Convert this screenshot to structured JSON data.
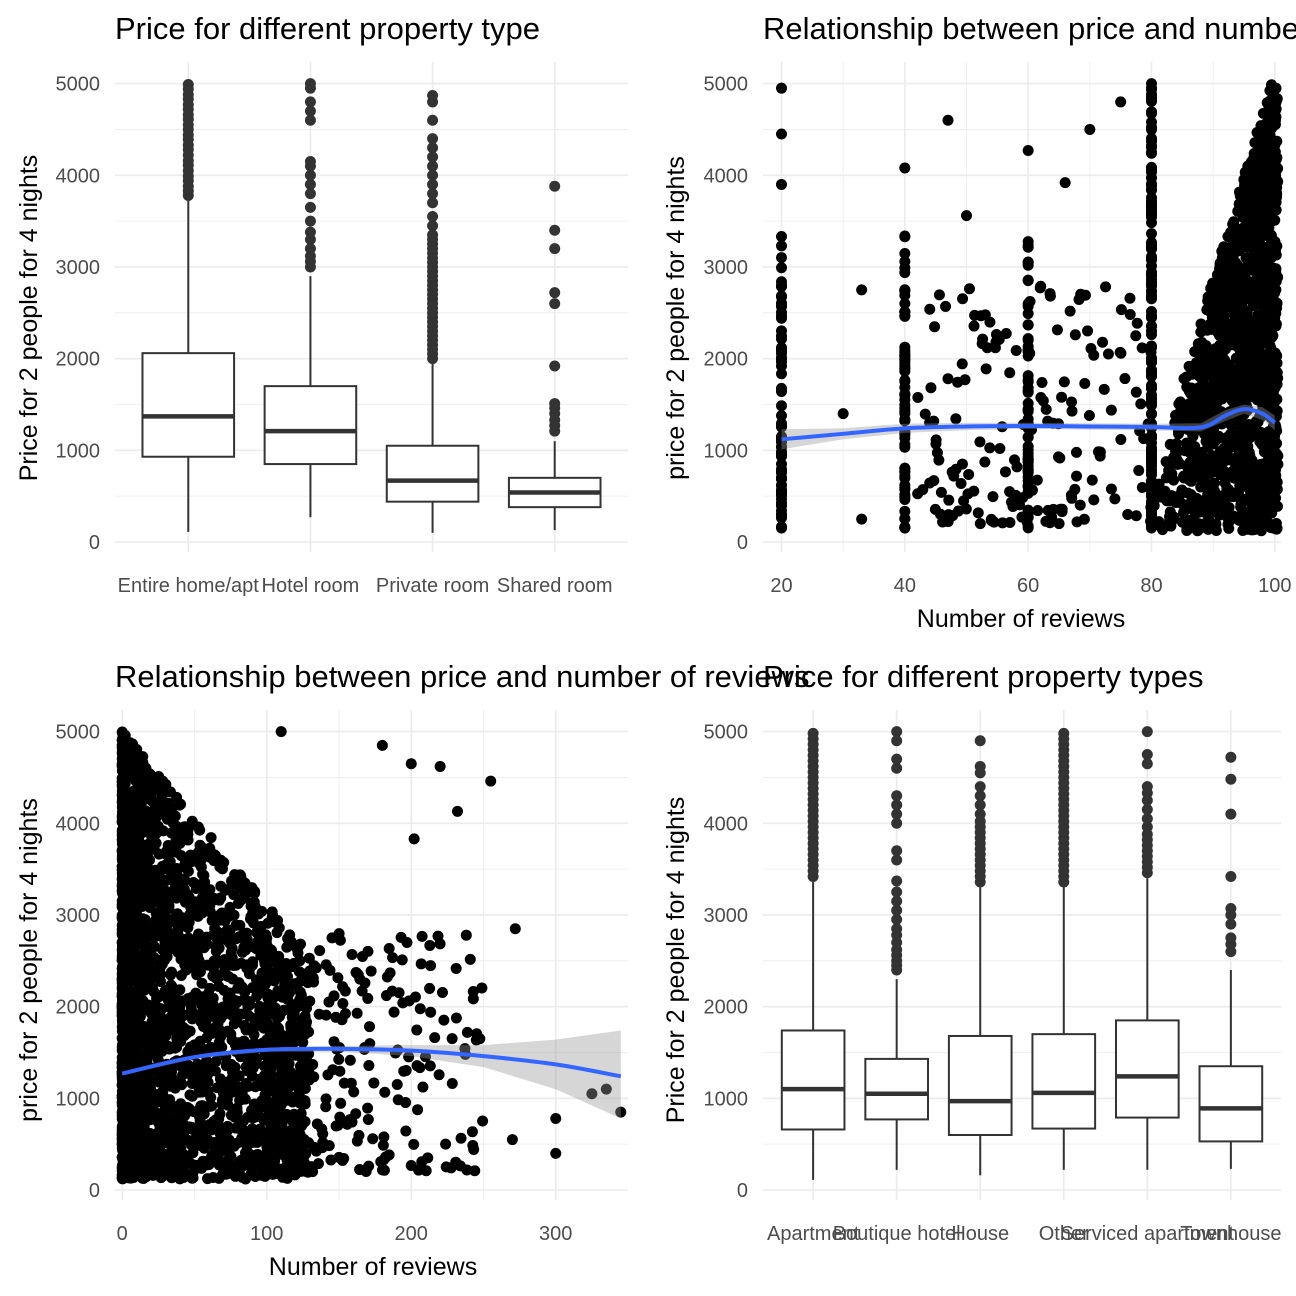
{
  "colors": {
    "grid": "#ebebeb",
    "box": "#333333",
    "point": "#000000",
    "smooth": "#3366ff",
    "ribbon": "#999999"
  },
  "chart_data": [
    {
      "type": "box",
      "title": "Price for different property type",
      "xlabel": "",
      "ylabel": "Price for 2 people for 4 nights",
      "ylim": [
        0,
        5000
      ],
      "yticks": [
        0,
        1000,
        2000,
        3000,
        4000,
        5000
      ],
      "categories": [
        "Entire home/apt",
        "Hotel room",
        "Private room",
        "Shared room"
      ],
      "boxes": [
        {
          "min": 110,
          "q1": 930,
          "median": 1370,
          "q3": 2060,
          "max": 3730,
          "outliers": [
            3780,
            3830,
            3880,
            3940,
            3990,
            4050,
            4110,
            4160,
            4220,
            4280,
            4330,
            4390,
            4440,
            4500,
            4550,
            4610,
            4660,
            4720,
            4770,
            4830,
            4880,
            4940,
            4990
          ]
        },
        {
          "min": 270,
          "q1": 850,
          "median": 1210,
          "q3": 1700,
          "max": 2900,
          "outliers": [
            3000,
            3060,
            3120,
            3200,
            3300,
            3380,
            3500,
            3650,
            3800,
            3900,
            4000,
            4100,
            4150,
            4600,
            4700,
            4800,
            4950,
            5000
          ]
        },
        {
          "min": 100,
          "q1": 440,
          "median": 670,
          "q3": 1050,
          "max": 1950,
          "outliers": [
            2000,
            2050,
            2100,
            2150,
            2200,
            2250,
            2300,
            2350,
            2400,
            2450,
            2500,
            2550,
            2600,
            2650,
            2700,
            2750,
            2800,
            2850,
            2900,
            2950,
            3000,
            3050,
            3100,
            3150,
            3200,
            3250,
            3300,
            3350,
            3450,
            3550,
            3700,
            3800,
            3900,
            4000,
            4100,
            4200,
            4300,
            4400,
            4600,
            4800,
            4870
          ]
        },
        {
          "min": 130,
          "q1": 380,
          "median": 540,
          "q3": 700,
          "max": 1100,
          "outliers": [
            1210,
            1270,
            1330,
            1400,
            1460,
            1510,
            1920,
            2600,
            2720,
            3200,
            3400,
            3880
          ]
        }
      ]
    },
    {
      "type": "scatter",
      "title": "Relationship between price and number of reviews",
      "xlabel": "Number of reviews",
      "ylabel": "price for 2 people for 4 nights",
      "xlim": [
        17,
        101
      ],
      "ylim": [
        0,
        5000
      ],
      "xticks": [
        20,
        40,
        60,
        80,
        100
      ],
      "yticks": [
        0,
        1000,
        2000,
        3000,
        4000,
        5000
      ],
      "smooth": {
        "x": [
          20,
          30,
          40,
          50,
          60,
          70,
          80,
          88,
          92,
          95,
          98,
          100
        ],
        "y": [
          1120,
          1180,
          1240,
          1260,
          1265,
          1260,
          1255,
          1250,
          1380,
          1450,
          1400,
          1300
        ],
        "lower": [
          1010,
          1120,
          1190,
          1220,
          1235,
          1225,
          1220,
          1205,
          1320,
          1400,
          1330,
          1220
        ],
        "upper": [
          1230,
          1240,
          1290,
          1300,
          1300,
          1295,
          1290,
          1295,
          1440,
          1500,
          1470,
          1380
        ]
      },
      "highlight_points": [
        [
          20,
          4950
        ],
        [
          20,
          4450
        ],
        [
          20,
          3900
        ],
        [
          33,
          2750
        ],
        [
          30,
          1400
        ],
        [
          33,
          250
        ],
        [
          40,
          4080
        ],
        [
          47,
          4600
        ],
        [
          50,
          3560
        ],
        [
          60,
          4270
        ],
        [
          66,
          3920
        ],
        [
          70,
          4500
        ],
        [
          75,
          4800
        ],
        [
          80,
          5000
        ]
      ]
    },
    {
      "type": "scatter",
      "title": "Relationship between price and number of reviews",
      "xlabel": "Number of reviews",
      "ylabel": "price for 2 people for 4 nights",
      "xlim": [
        -5,
        350
      ],
      "ylim": [
        0,
        5000
      ],
      "xticks": [
        0,
        100,
        200,
        300
      ],
      "yticks": [
        0,
        1000,
        2000,
        3000,
        4000,
        5000
      ],
      "smooth": {
        "x": [
          0,
          50,
          100,
          150,
          200,
          250,
          300,
          345
        ],
        "y": [
          1270,
          1450,
          1530,
          1540,
          1520,
          1460,
          1370,
          1240
        ],
        "lower": [
          1250,
          1430,
          1510,
          1510,
          1460,
          1340,
          1100,
          780
        ],
        "upper": [
          1290,
          1470,
          1550,
          1570,
          1580,
          1580,
          1640,
          1740
        ]
      },
      "highlight_points": [
        [
          110,
          5000
        ],
        [
          180,
          4850
        ],
        [
          200,
          4650
        ],
        [
          220,
          4620
        ],
        [
          255,
          4460
        ],
        [
          232,
          4130
        ],
        [
          202,
          3830
        ],
        [
          272,
          2850
        ],
        [
          300,
          780
        ],
        [
          345,
          850
        ],
        [
          325,
          1050
        ],
        [
          335,
          1100
        ],
        [
          300,
          400
        ],
        [
          270,
          550
        ]
      ]
    },
    {
      "type": "box",
      "title": "Price for different property types",
      "xlabel": "",
      "ylabel": "Price for 2 people for 4 nights",
      "ylim": [
        0,
        5000
      ],
      "yticks": [
        0,
        1000,
        2000,
        3000,
        4000,
        5000
      ],
      "categories": [
        "Apartment",
        "Boutique hotel",
        "House",
        "Other",
        "Serviced apartment",
        "Townhouse"
      ],
      "boxes": [
        {
          "min": 110,
          "q1": 660,
          "median": 1100,
          "q3": 1740,
          "max": 3360,
          "outliers": [
            3420,
            3480,
            3540,
            3600,
            3660,
            3720,
            3780,
            3840,
            3900,
            3960,
            4020,
            4080,
            4140,
            4200,
            4260,
            4320,
            4380,
            4440,
            4500,
            4560,
            4620,
            4680,
            4740,
            4800,
            4860,
            4920,
            4980
          ]
        },
        {
          "min": 220,
          "q1": 770,
          "median": 1050,
          "q3": 1430,
          "max": 2300,
          "outliers": [
            2400,
            2450,
            2500,
            2560,
            2620,
            2700,
            2780,
            2850,
            2950,
            3050,
            3150,
            3250,
            3370,
            3600,
            3700,
            4000,
            4100,
            4200,
            4300,
            4600,
            4700,
            4900,
            5000
          ]
        },
        {
          "min": 160,
          "q1": 600,
          "median": 970,
          "q3": 1680,
          "max": 3300,
          "outliers": [
            3360,
            3420,
            3480,
            3540,
            3600,
            3660,
            3720,
            3780,
            3840,
            3900,
            3960,
            4020,
            4100,
            4200,
            4300,
            4400,
            4550,
            4620,
            4900
          ]
        },
        {
          "min": 220,
          "q1": 670,
          "median": 1060,
          "q3": 1700,
          "max": 3300,
          "outliers": [
            3360,
            3420,
            3480,
            3540,
            3600,
            3660,
            3720,
            3780,
            3840,
            3900,
            3960,
            4020,
            4080,
            4140,
            4200,
            4260,
            4320,
            4380,
            4440,
            4500,
            4560,
            4620,
            4680,
            4740,
            4800,
            4860,
            4920,
            4980
          ]
        },
        {
          "min": 220,
          "q1": 790,
          "median": 1240,
          "q3": 1850,
          "max": 3400,
          "outliers": [
            3460,
            3520,
            3580,
            3640,
            3700,
            3760,
            3820,
            3880,
            3960,
            4050,
            4150,
            4250,
            4330,
            4400,
            4650,
            4750,
            5000
          ]
        },
        {
          "min": 230,
          "q1": 530,
          "median": 890,
          "q3": 1350,
          "max": 2400,
          "outliers": [
            2600,
            2680,
            2750,
            2900,
            3000,
            3070,
            3420,
            4100,
            4480,
            4720
          ]
        }
      ]
    }
  ]
}
